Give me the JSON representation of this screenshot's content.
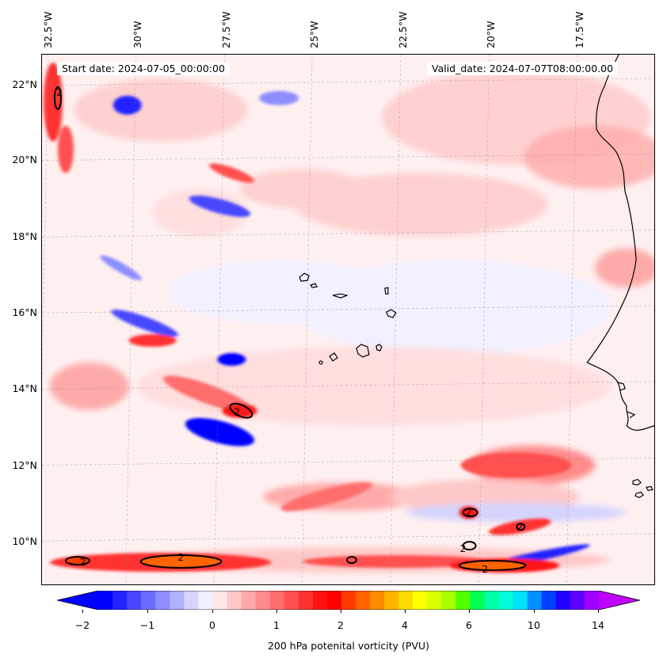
{
  "header": {
    "start_date": "Start date: 2024-07-05_00:00:00",
    "valid_date": "Valid_date: 2024-07-07T08:00:00.00"
  },
  "map": {
    "longitude_labels": [
      "32.5°W",
      "30°W",
      "27.5°W",
      "25°W",
      "22.5°W",
      "20°W",
      "17.5°W"
    ],
    "latitude_labels": [
      "22°N",
      "20°N",
      "18°N",
      "16°N",
      "14°N",
      "12°N",
      "10°N"
    ],
    "contour_label": "2",
    "colors": {
      "strong_positive": "#ff0000",
      "core": "#ff6600",
      "negative": "#0000ff",
      "background": "#fff4f4",
      "coastline": "#000000"
    }
  },
  "colorbar": {
    "tick_labels": [
      "−2",
      "−1",
      "0",
      "1",
      "2",
      "4",
      "6",
      "10",
      "14"
    ],
    "label": "200 hPa potenital vorticity (PVU)",
    "colors": [
      "#0000ff",
      "#2323ff",
      "#4646ff",
      "#6a6aff",
      "#8d8dff",
      "#b0b0ff",
      "#d4d4ff",
      "#f0f0ff",
      "#ffe6e6",
      "#ffc8c8",
      "#ffaaaa",
      "#ff8c8c",
      "#ff6e6e",
      "#ff5050",
      "#ff3232",
      "#ff1414",
      "#ff0000",
      "#ff3c00",
      "#ff6400",
      "#ff8c00",
      "#ffb400",
      "#ffdc00",
      "#ffff00",
      "#d8ff00",
      "#a8ff00",
      "#50ff00",
      "#00ff50",
      "#00ffa8",
      "#00ffd8",
      "#00e0ff",
      "#0090ff",
      "#0040ff",
      "#2000ff",
      "#6000ff",
      "#a000ff"
    ],
    "min_color": "#0000ff",
    "max_color": "#c000ff"
  }
}
